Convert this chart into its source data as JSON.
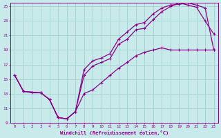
{
  "xlabel": "Windchill (Refroidissement éolien,°C)",
  "xlim": [
    -0.5,
    23.5
  ],
  "ylim": [
    9,
    25.5
  ],
  "xticks": [
    0,
    1,
    2,
    3,
    4,
    5,
    6,
    7,
    8,
    9,
    10,
    11,
    12,
    13,
    14,
    15,
    16,
    17,
    18,
    19,
    20,
    21,
    22,
    23
  ],
  "yticks": [
    9,
    11,
    13,
    15,
    17,
    19,
    21,
    23,
    25
  ],
  "background_color": "#c8eaea",
  "grid_color": "#aad4d4",
  "line_color": "#880088",
  "line1_x": [
    0,
    1,
    2,
    3,
    4,
    5,
    6,
    7,
    8,
    9,
    10,
    11,
    12,
    13,
    14,
    15,
    16,
    17,
    18,
    19,
    20,
    21,
    22,
    23
  ],
  "line1_y": [
    15.5,
    13.3,
    13.1,
    13.1,
    12.2,
    9.7,
    9.5,
    10.5,
    13.0,
    13.5,
    14.5,
    15.5,
    16.5,
    17.3,
    18.2,
    18.7,
    19.0,
    19.3,
    19.0,
    19.0,
    19.0,
    19.0,
    19.0,
    19.0
  ],
  "line2_x": [
    0,
    1,
    3,
    4,
    5,
    6,
    7,
    8,
    9,
    10,
    11,
    12,
    13,
    14,
    15,
    16,
    17,
    18,
    19,
    20,
    21,
    22,
    23
  ],
  "line2_y": [
    15.5,
    13.3,
    13.1,
    12.2,
    9.7,
    9.5,
    10.5,
    15.5,
    16.8,
    17.3,
    17.8,
    19.8,
    20.5,
    21.8,
    22.0,
    23.2,
    24.3,
    25.0,
    25.5,
    25.2,
    24.9,
    23.0,
    21.2
  ],
  "line3_x": [
    0,
    1,
    3,
    4,
    5,
    6,
    7,
    8,
    9,
    10,
    11,
    12,
    13,
    14,
    15,
    16,
    17,
    18,
    19,
    20,
    21,
    22,
    23
  ],
  "line3_y": [
    15.5,
    13.3,
    13.1,
    12.2,
    9.7,
    9.5,
    10.5,
    16.3,
    17.5,
    17.9,
    18.5,
    20.5,
    21.5,
    22.5,
    22.8,
    24.0,
    24.8,
    25.2,
    25.3,
    25.5,
    25.2,
    24.8,
    19.0
  ]
}
